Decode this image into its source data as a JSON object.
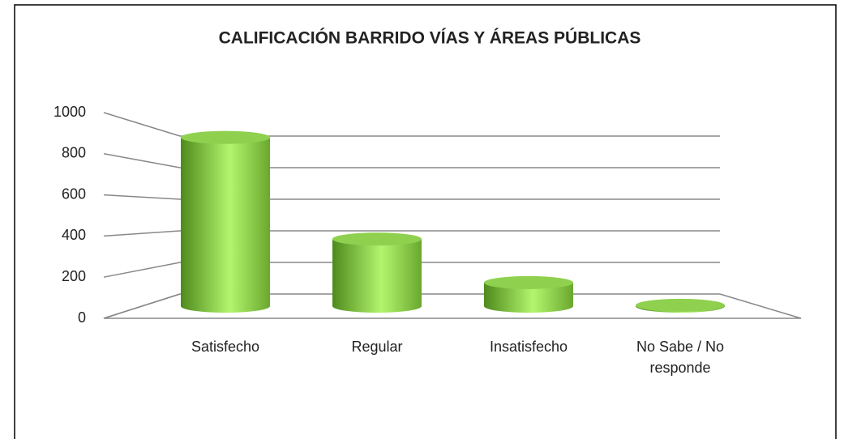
{
  "chart_data": {
    "type": "bar",
    "title": "CALIFICACIÓN BARRIDO VÍAS Y ÁREAS PÚBLICAS",
    "categories": [
      "Satisfecho",
      "Regular",
      "Insatisfecho",
      "No Sabe / No responde"
    ],
    "values": [
      930,
      370,
      130,
      5
    ],
    "color": "#8fd14f",
    "ylim": [
      0,
      1000
    ],
    "yticks": [
      0,
      200,
      400,
      600,
      800,
      1000
    ],
    "grid": true
  }
}
